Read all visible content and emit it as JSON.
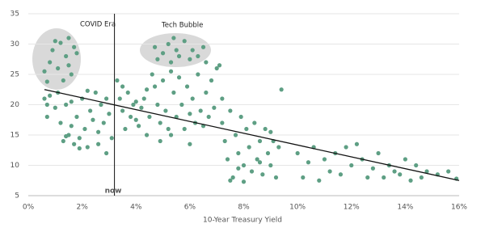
{
  "chart_data": {
    "type": "scatter",
    "x_label": "10-Year Treasury Yield",
    "color": "#5e9f84",
    "x": [
      0.6,
      0.8,
      0.9,
      1.0,
      1.1,
      1.2,
      1.4,
      1.5,
      1.6,
      1.7,
      1.8,
      1.3,
      1.5,
      0.7,
      0.6,
      0.7,
      0.7,
      0.8,
      1.0,
      1.2,
      1.3,
      1.4,
      1.5,
      1.6,
      1.7,
      1.8,
      1.9,
      2.0,
      2.1,
      2.2,
      2.3,
      2.4,
      2.5,
      2.6,
      2.7,
      2.8,
      2.9,
      3.0,
      3.1,
      1.1,
      1.6,
      2.2,
      2.9,
      1.9,
      1.4,
      2.6,
      3.3,
      3.4,
      3.5,
      3.6,
      3.7,
      3.8,
      3.9,
      4.0,
      4.1,
      4.2,
      4.3,
      4.4,
      4.5,
      3.5,
      4.0,
      4.4,
      4.7,
      4.8,
      5.0,
      5.2,
      5.3,
      5.5,
      5.6,
      5.8,
      6.0,
      6.1,
      6.3,
      6.5,
      6.6,
      5.4,
      4.6,
      4.7,
      4.8,
      4.9,
      5.0,
      5.1,
      5.2,
      5.3,
      5.4,
      5.5,
      5.6,
      5.7,
      5.8,
      5.9,
      6.0,
      6.1,
      6.2,
      6.3,
      6.4,
      6.5,
      6.6,
      6.7,
      6.8,
      6.9,
      7.0,
      7.1,
      7.2,
      4.9,
      5.3,
      6.0,
      7.2,
      7.3,
      7.4,
      7.5,
      7.6,
      7.7,
      7.8,
      7.9,
      8.0,
      8.1,
      8.2,
      8.3,
      8.4,
      8.5,
      8.6,
      8.7,
      8.8,
      8.9,
      9.0,
      9.1,
      9.2,
      9.3,
      9.4,
      7.5,
      8.0,
      7.8,
      8.6,
      9.0,
      10.0,
      10.2,
      10.4,
      10.6,
      10.8,
      11.0,
      11.2,
      11.4,
      11.6,
      11.8,
      12.0,
      12.2,
      12.4,
      12.6,
      12.8,
      13.0,
      13.2,
      13.4,
      13.6,
      13.8,
      14.0,
      14.2,
      14.4,
      14.6,
      14.8,
      15.2,
      15.6,
      15.9
    ],
    "values": [
      25.5,
      27,
      29,
      30.5,
      26,
      30.2,
      28,
      31,
      25,
      29.5,
      28.5,
      24,
      26.5,
      23.8,
      21,
      18,
      20,
      21.5,
      19.5,
      17,
      14,
      20,
      15,
      16.5,
      13.5,
      18,
      14.5,
      21,
      16,
      13,
      19,
      17.5,
      22,
      15.5,
      20,
      17,
      12,
      18.5,
      14.5,
      22,
      20.5,
      22.3,
      21,
      12.8,
      14.8,
      13.5,
      24,
      21,
      19,
      16,
      22,
      18,
      20,
      17.5,
      16.5,
      19.5,
      21,
      15,
      18,
      23,
      20.5,
      22.5,
      29.5,
      27.5,
      28.5,
      30,
      27,
      29,
      28,
      30.5,
      27.5,
      29,
      28,
      29.5,
      27,
      31,
      25,
      23,
      20,
      17,
      24,
      19,
      16,
      25.5,
      22,
      18,
      24.5,
      20,
      16,
      23,
      18.5,
      21,
      17,
      25,
      19,
      16.5,
      22,
      18,
      24,
      19.5,
      26,
      26.5,
      21,
      14,
      15,
      13.5,
      17,
      14,
      11,
      19,
      8,
      15,
      12,
      18,
      10,
      16,
      13,
      9,
      17,
      11,
      14,
      8.5,
      16,
      12,
      10,
      14,
      8,
      13,
      22.5,
      7.5,
      7.3,
      9.5,
      10.5,
      15.5,
      12,
      8,
      10.5,
      13,
      7.5,
      11,
      9,
      12,
      8.5,
      13,
      10,
      13.5,
      11,
      8,
      9.5,
      12,
      8,
      10,
      9,
      8.5,
      11,
      7.5,
      10,
      8,
      9,
      8.5,
      9,
      7.8
    ],
    "trend": {
      "x": [
        0.6,
        16
      ],
      "y": [
        22.5,
        7.5
      ]
    },
    "reference_line": {
      "x": 3.2,
      "label": "now"
    },
    "annotations": [
      "COVID Era",
      "Tech Bubble"
    ],
    "xlim": [
      0,
      16
    ],
    "ylim": [
      5,
      35
    ],
    "xticks": [
      {
        "value": 0,
        "label": "0%"
      },
      {
        "value": 2,
        "label": "2%"
      },
      {
        "value": 4,
        "label": "4%"
      },
      {
        "value": 6,
        "label": "6%"
      },
      {
        "value": 8,
        "label": "8%"
      },
      {
        "value": 10,
        "label": "10%"
      },
      {
        "value": 12,
        "label": "12%"
      },
      {
        "value": 14,
        "label": "14%"
      },
      {
        "value": 16,
        "label": "16%"
      }
    ],
    "yticks": [
      5,
      10,
      15,
      20,
      25,
      30,
      35
    ],
    "grid": true
  }
}
